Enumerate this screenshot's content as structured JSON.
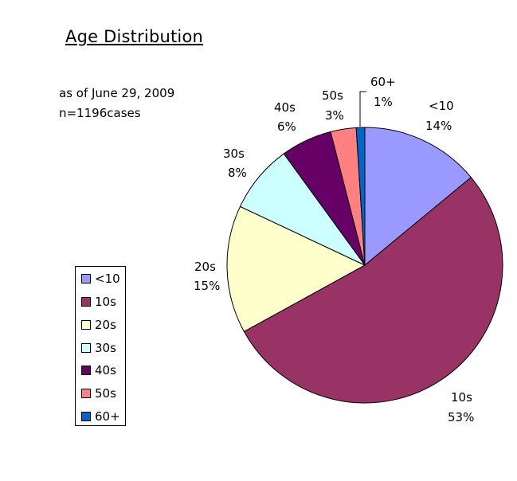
{
  "title": "Age Distribution",
  "subtitle_lines": [
    "as of June 29, 2009",
    "n=1196cases"
  ],
  "chart_data": {
    "type": "pie",
    "title": "Age Distribution",
    "subtitle": "as of June 29, 2009, n=1196cases",
    "categories": [
      "<10",
      "10s",
      "20s",
      "30s",
      "40s",
      "50s",
      "60+"
    ],
    "values": [
      14,
      53,
      15,
      8,
      6,
      3,
      1
    ],
    "value_labels": [
      "14%",
      "53%",
      "15%",
      "8%",
      "6%",
      "3%",
      "1%"
    ],
    "colors": [
      "#9999FF",
      "#993366",
      "#FFFFCC",
      "#CCFFFF",
      "#660066",
      "#FF8080",
      "#0066CC"
    ],
    "start_angle_deg": 0,
    "direction": "clockwise",
    "legend_position": "left"
  },
  "legend": {
    "items": [
      {
        "label": "<10",
        "color": "#9999FF"
      },
      {
        "label": "10s",
        "color": "#993366"
      },
      {
        "label": "20s",
        "color": "#FFFFCC"
      },
      {
        "label": "30s",
        "color": "#CCFFFF"
      },
      {
        "label": "40s",
        "color": "#660066"
      },
      {
        "label": "50s",
        "color": "#FF8080"
      },
      {
        "label": "60+",
        "color": "#0066CC"
      }
    ]
  },
  "slice_labels": [
    {
      "name": "<10",
      "pct": "14%"
    },
    {
      "name": "10s",
      "pct": "53%"
    },
    {
      "name": "20s",
      "pct": "15%"
    },
    {
      "name": "30s",
      "pct": "8%"
    },
    {
      "name": "40s",
      "pct": "6%"
    },
    {
      "name": "50s",
      "pct": "3%"
    },
    {
      "name": "60+",
      "pct": "1%"
    }
  ]
}
